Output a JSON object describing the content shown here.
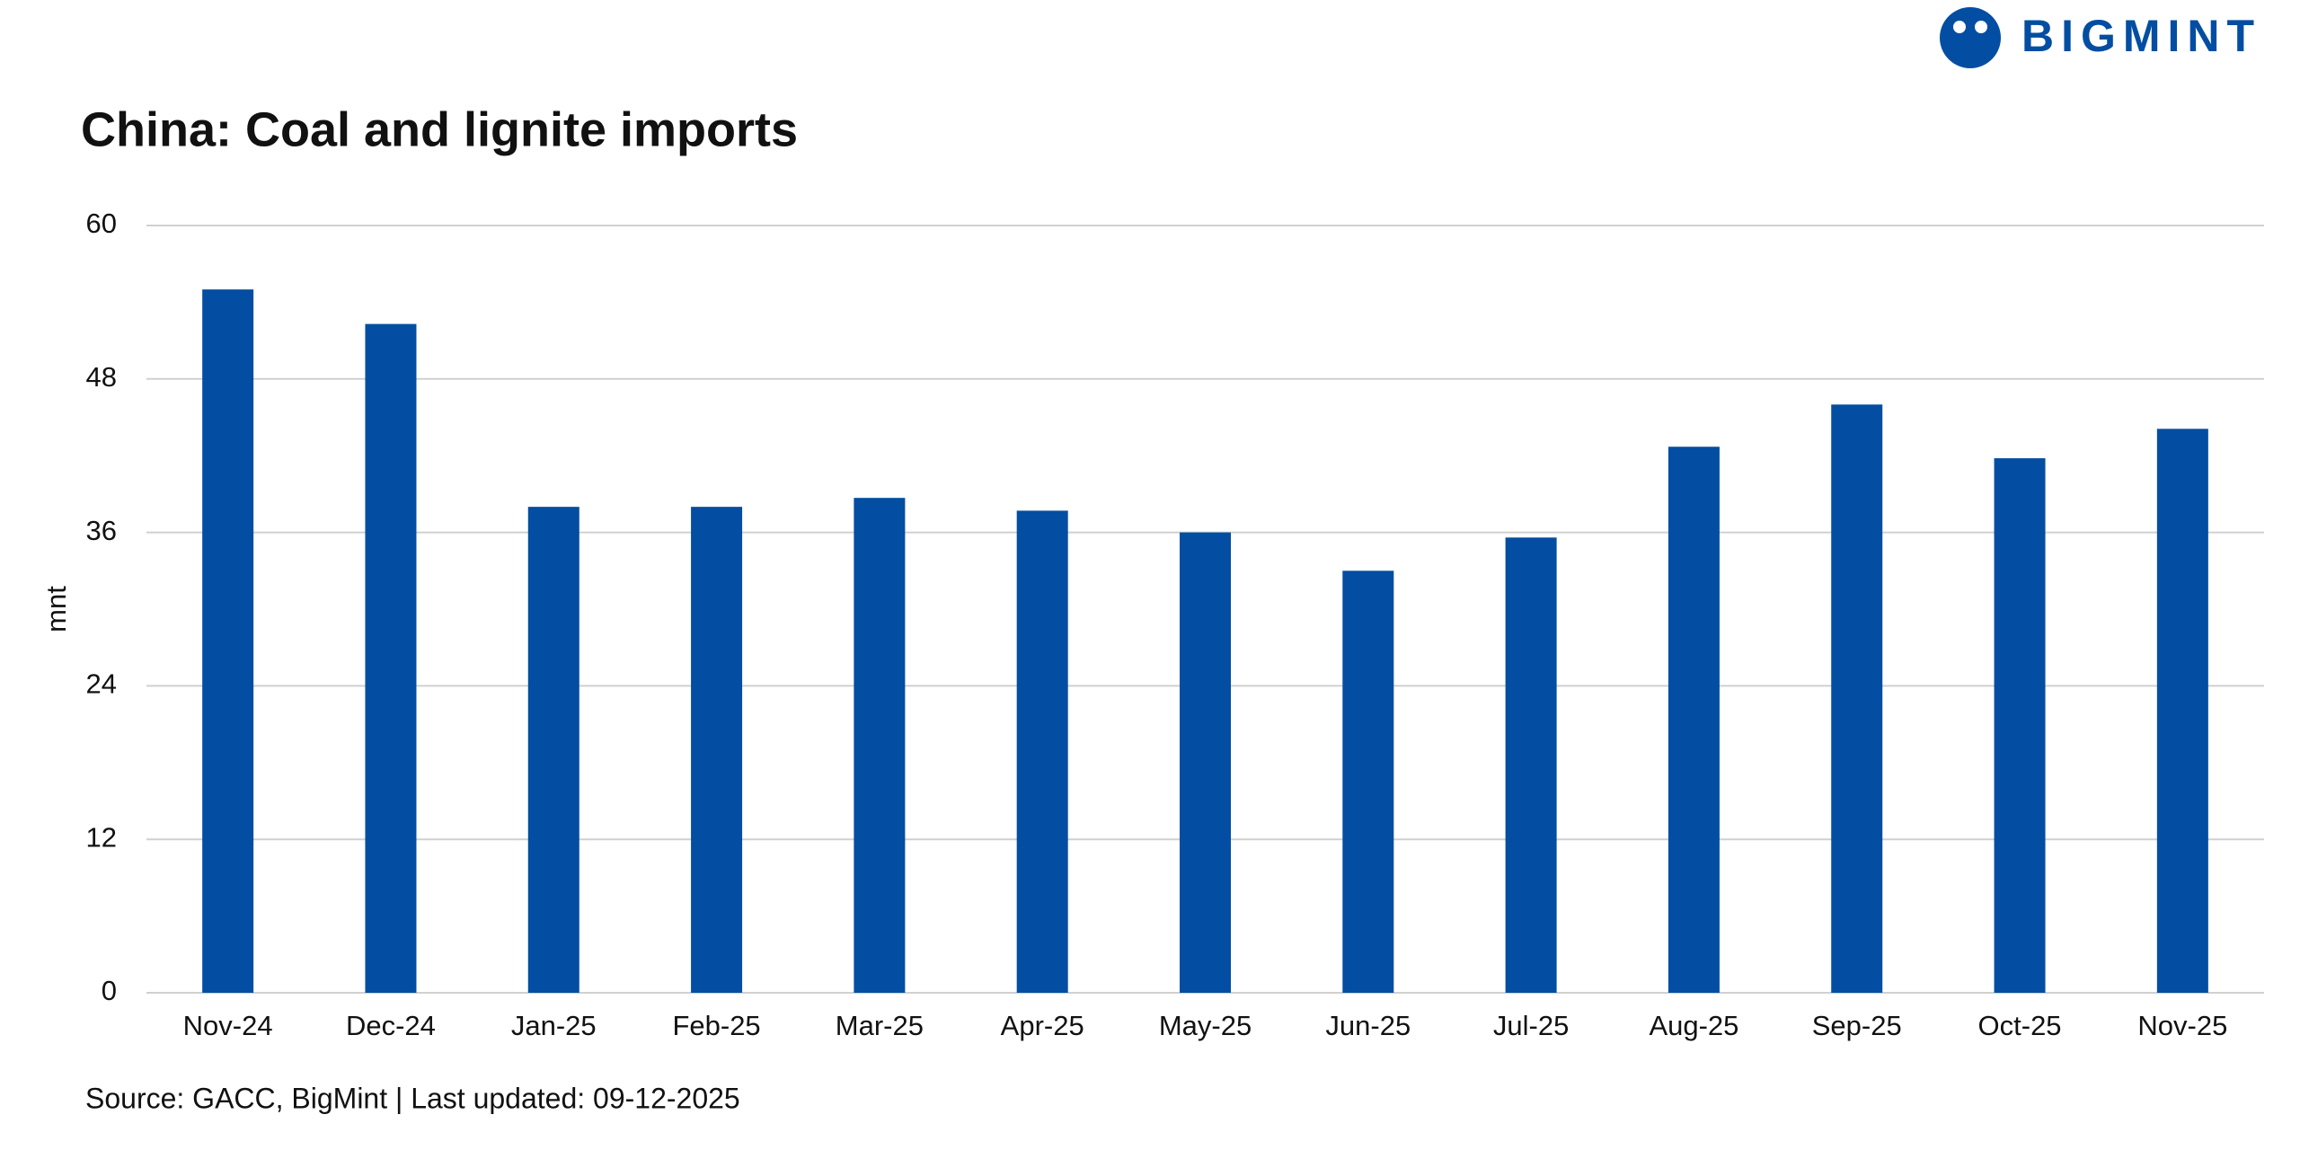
{
  "logo": "BIGMINT",
  "chart_data": {
    "type": "bar",
    "title": "China: Coal and lignite imports",
    "y_label": "mnt",
    "source": "Source: GACC, BigMint | Last updated: 09-12-2025",
    "categories": [
      "Nov-24",
      "Dec-24",
      "Jan-25",
      "Feb-25",
      "Mar-25",
      "Apr-25",
      "May-25",
      "Jun-25",
      "Jul-25",
      "Aug-25",
      "Sep-25",
      "Oct-25",
      "Nov-25"
    ],
    "values": [
      55.0,
      52.3,
      38.0,
      38.0,
      38.7,
      37.7,
      36.0,
      33.0,
      35.6,
      42.7,
      46.0,
      41.8,
      44.1
    ],
    "color": "#034ea2",
    "ylim": [
      0,
      60
    ],
    "yticks": [
      0,
      12,
      24,
      36,
      48,
      60
    ],
    "grid": true
  }
}
